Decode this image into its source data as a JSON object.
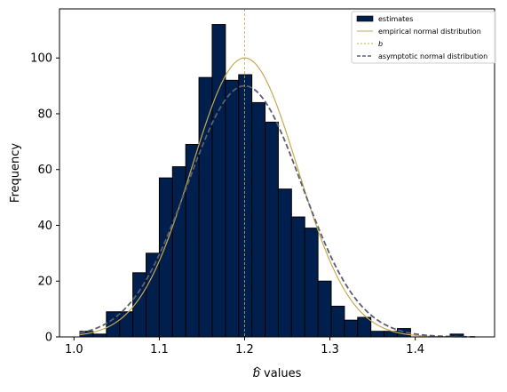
{
  "chart_data": {
    "type": "bar",
    "title": "",
    "xlabel_symbol": "b",
    "xlabel_suffix": " values",
    "ylabel": "Frequency",
    "xlim": [
      0.983,
      1.493
    ],
    "ylim": [
      0,
      117.6
    ],
    "x_ticks": [
      1.0,
      1.1,
      1.2,
      1.3,
      1.4
    ],
    "x_tick_labels": [
      "1.0",
      "1.1",
      "1.2",
      "1.3",
      "1.4"
    ],
    "y_ticks": [
      0,
      20,
      40,
      60,
      80,
      100
    ],
    "y_tick_labels": [
      "0",
      "20",
      "40",
      "60",
      "80",
      "100"
    ],
    "grid": false,
    "legend_position": "upper right",
    "bar_color": "#001f4d",
    "bin_edges": [
      1.007,
      1.0225,
      1.038,
      1.0535,
      1.069,
      1.0845,
      1.1,
      1.1155,
      1.131,
      1.1465,
      1.162,
      1.1775,
      1.193,
      1.2085,
      1.224,
      1.2395,
      1.255,
      1.2705,
      1.286,
      1.3015,
      1.317,
      1.3325,
      1.348,
      1.3635,
      1.379,
      1.3945,
      1.41,
      1.4255,
      1.441,
      1.4565,
      1.472
    ],
    "counts": [
      2,
      1,
      9,
      9,
      23,
      30,
      57,
      61,
      69,
      93,
      112,
      92,
      94,
      84,
      77,
      53,
      43,
      39,
      20,
      11,
      6,
      7,
      2,
      2,
      3,
      0,
      0,
      0,
      1,
      0
    ],
    "reference_line": {
      "x": 1.2,
      "color": "#c8a951",
      "label": "b"
    },
    "empirical_curve": {
      "label": "empirical normal distribution",
      "mean": 1.2,
      "sd": 0.062,
      "peak": 100,
      "color": "#c8a951"
    },
    "asymptotic_curve": {
      "label": "asymptotic normal distribution",
      "mean": 1.2,
      "sd": 0.067,
      "peak": 90,
      "color": "#5a5f73"
    },
    "legend": [
      {
        "label": "estimates",
        "kind": "patch",
        "color": "#001f4d"
      },
      {
        "label": "empirical normal distribution",
        "kind": "line",
        "color": "#c8a951"
      },
      {
        "label": "b",
        "kind": "dashed-line",
        "color": "#c8a951"
      },
      {
        "label": "asymptotic normal distribution",
        "kind": "dashed-line",
        "color": "#5a5f73"
      }
    ]
  }
}
